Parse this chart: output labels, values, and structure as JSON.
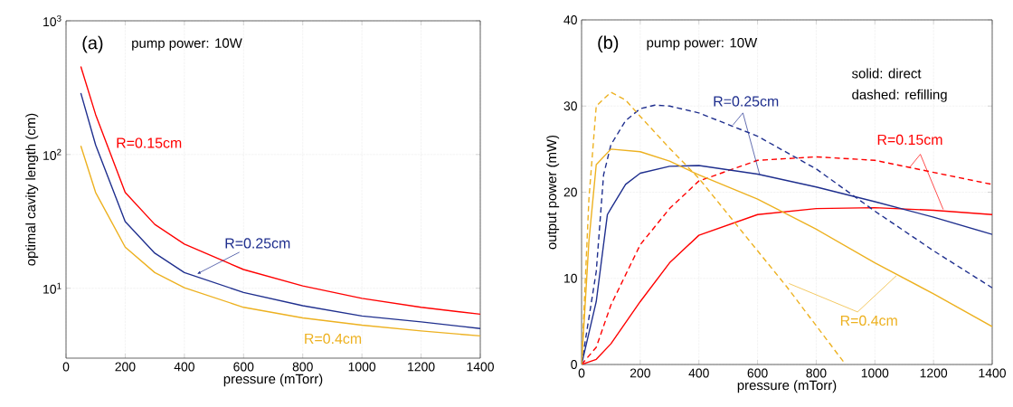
{
  "chart_data": [
    {
      "type": "line",
      "xlabel": "pressure (mTorr)",
      "ylabel": "optimal cavity length (cm)",
      "log": "y",
      "grid": true,
      "xlim": [
        0,
        1400
      ],
      "xticks": [
        0,
        200,
        400,
        600,
        800,
        1000,
        1200,
        1400
      ],
      "ylim": [
        3,
        1000
      ],
      "yticks": [
        {
          "value": 10,
          "label": "10$^{1}$"
        },
        {
          "value": 100,
          "label": "10$^{2}$"
        },
        {
          "value": 1000,
          "label": "10$^{3}$"
        }
      ],
      "annotations": [
        "(a)",
        "pump power: 10W"
      ],
      "series": [
        {
          "name": "R=0.15cm",
          "color": "#ff0000",
          "x": [
            50,
            100,
            200,
            300,
            400,
            600,
            800,
            1000,
            1200,
            1400
          ],
          "values": [
            455,
            199,
            52,
            30,
            21.4,
            13.8,
            10.4,
            8.4,
            7.2,
            6.4
          ]
        },
        {
          "name": "R=0.25cm",
          "color": "#1f2f8e",
          "x": [
            50,
            100,
            200,
            300,
            400,
            600,
            800,
            1000,
            1200,
            1400
          ],
          "values": [
            288,
            118,
            31.5,
            18.3,
            13.1,
            9.3,
            7.4,
            6.2,
            5.6,
            5.0
          ]
        },
        {
          "name": "R=0.4cm",
          "color": "#edb120",
          "x": [
            50,
            100,
            200,
            300,
            400,
            600,
            800,
            1000,
            1200,
            1400
          ],
          "values": [
            116,
            52,
            20.3,
            13.1,
            10.1,
            7.2,
            6.0,
            5.3,
            4.8,
            4.4
          ]
        }
      ]
    },
    {
      "type": "line",
      "xlabel": "pressure (mTorr)",
      "ylabel": "output power (mW)",
      "grid": true,
      "xlim": [
        0,
        1400
      ],
      "xticks": [
        0,
        200,
        400,
        600,
        800,
        1000,
        1200,
        1400
      ],
      "ylim": [
        0,
        40
      ],
      "yticks": [
        0,
        10,
        20,
        30,
        40
      ],
      "annotations": [
        "(b)",
        "pump power: 10W",
        "solid: direct",
        "dashed: refilling"
      ],
      "series": [
        {
          "name": "R=0.15cm",
          "color": "#ff0000",
          "line_style": "solid",
          "x": [
            0,
            50,
            100,
            200,
            300,
            400,
            600,
            800,
            1000,
            1200,
            1400
          ],
          "values": [
            0,
            0.6,
            2.4,
            7.3,
            11.8,
            15.0,
            17.4,
            18.1,
            18.2,
            17.9,
            17.4
          ]
        },
        {
          "color": "#ff0000",
          "line_style": "dashed",
          "x": [
            0,
            50,
            100,
            200,
            300,
            400,
            600,
            800,
            1000,
            1200,
            1400
          ],
          "values": [
            0,
            2.0,
            6.9,
            13.9,
            18.1,
            21.3,
            23.7,
            24.1,
            23.7,
            22.3,
            20.9
          ]
        },
        {
          "name": "R=0.25cm",
          "color": "#1f2f8e",
          "line_style": "solid",
          "x": [
            0,
            50,
            88,
            100,
            150,
            200,
            300,
            400,
            600,
            800,
            1000,
            1200,
            1400
          ],
          "values": [
            0,
            7.3,
            17.4,
            18.1,
            20.9,
            22.2,
            23.0,
            23.1,
            22.1,
            20.6,
            18.9,
            17.1,
            15.1
          ]
        },
        {
          "color": "#1f2f8e",
          "line_style": "dashed",
          "x": [
            0,
            50,
            75,
            100,
            150,
            200,
            250,
            300,
            400,
            600,
            800,
            1000,
            1200,
            1400
          ],
          "values": [
            0,
            10.8,
            22,
            25.5,
            28.3,
            29.7,
            30.1,
            30.0,
            29.2,
            26.5,
            22.7,
            17.8,
            13.2,
            8.9
          ]
        },
        {
          "name": "R=0.4cm",
          "color": "#edb120",
          "line_style": "solid",
          "x": [
            0,
            25,
            50,
            100,
            200,
            300,
            400,
            600,
            800,
            1000,
            1200,
            1400
          ],
          "values": [
            0,
            14.3,
            23.2,
            25.0,
            24.7,
            23.6,
            22.0,
            19.2,
            15.7,
            11.8,
            8.2,
            4.4
          ]
        },
        {
          "color": "#edb120",
          "line_style": "dashed",
          "x": [
            0,
            25,
            50,
            100,
            150,
            200,
            300,
            400,
            500,
            600,
            700,
            800,
            900
          ],
          "values": [
            0,
            19.2,
            30.0,
            31.6,
            30.7,
            28.8,
            25.1,
            21.6,
            17.4,
            13.2,
            9.0,
            4.5,
            0
          ]
        }
      ]
    }
  ]
}
